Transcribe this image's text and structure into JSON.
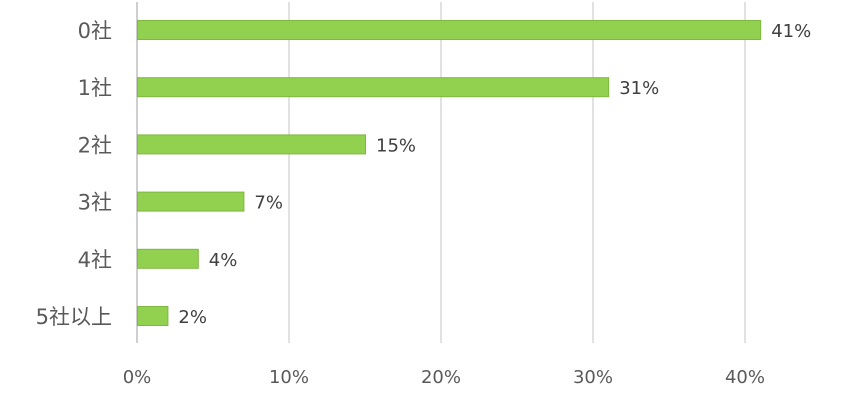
{
  "chart_data": {
    "type": "bar",
    "orientation": "horizontal",
    "categories": [
      "0社",
      "1社",
      "2社",
      "3社",
      "4社",
      "5社以上"
    ],
    "values": [
      41,
      31,
      15,
      7,
      4,
      2
    ],
    "data_labels": [
      "41%",
      "31%",
      "15%",
      "7%",
      "4%",
      "2%"
    ],
    "xlim": [
      0,
      40
    ],
    "x_ticks": [
      0,
      10,
      20,
      30,
      40
    ],
    "x_tick_labels": [
      "0%",
      "10%",
      "20%",
      "30%",
      "40%"
    ],
    "grid": "vertical",
    "legend": "none",
    "title": "",
    "xlabel": "",
    "ylabel": ""
  },
  "colors": {
    "bar_fill": "#92d050",
    "bar_stroke": "#7fb83f"
  }
}
